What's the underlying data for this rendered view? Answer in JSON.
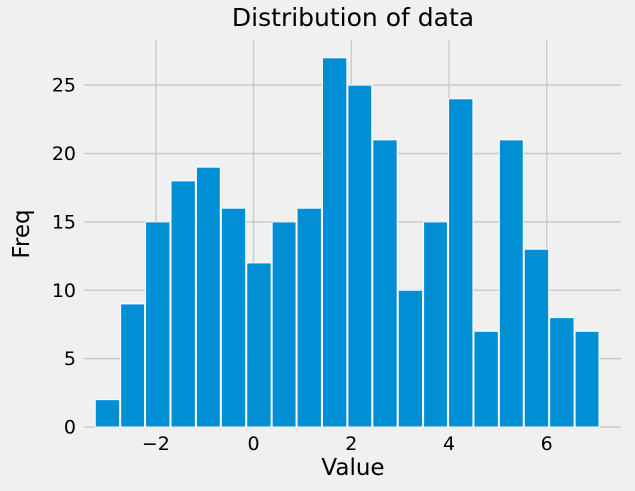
{
  "chart_data": {
    "type": "bar",
    "subtype": "histogram",
    "title": "Distribution of data",
    "xlabel": "Value",
    "ylabel": "Freq",
    "bin_edges": [
      -3.25,
      -2.73,
      -2.22,
      -1.7,
      -1.18,
      -0.67,
      -0.15,
      0.37,
      0.88,
      1.4,
      1.92,
      2.43,
      2.95,
      3.47,
      3.98,
      4.5,
      5.02,
      5.53,
      6.05,
      6.57,
      7.08
    ],
    "counts": [
      2,
      9,
      15,
      18,
      19,
      16,
      12,
      15,
      16,
      27,
      25,
      21,
      10,
      15,
      24,
      7,
      21,
      13,
      8,
      7
    ],
    "total_samples": 300,
    "x_ticks": [
      -2,
      0,
      2,
      4,
      6
    ],
    "y_ticks": [
      0,
      5,
      10,
      15,
      20,
      25
    ],
    "xlim": [
      -3.47,
      7.52
    ],
    "ylim": [
      0,
      28.3
    ],
    "grid": true,
    "legend": false,
    "colors": {
      "bar": "#008fd5",
      "bar_edge": "#ffffff",
      "background": "#f0f0f0",
      "grid": "#cbcbcb",
      "text": "#000000"
    }
  }
}
